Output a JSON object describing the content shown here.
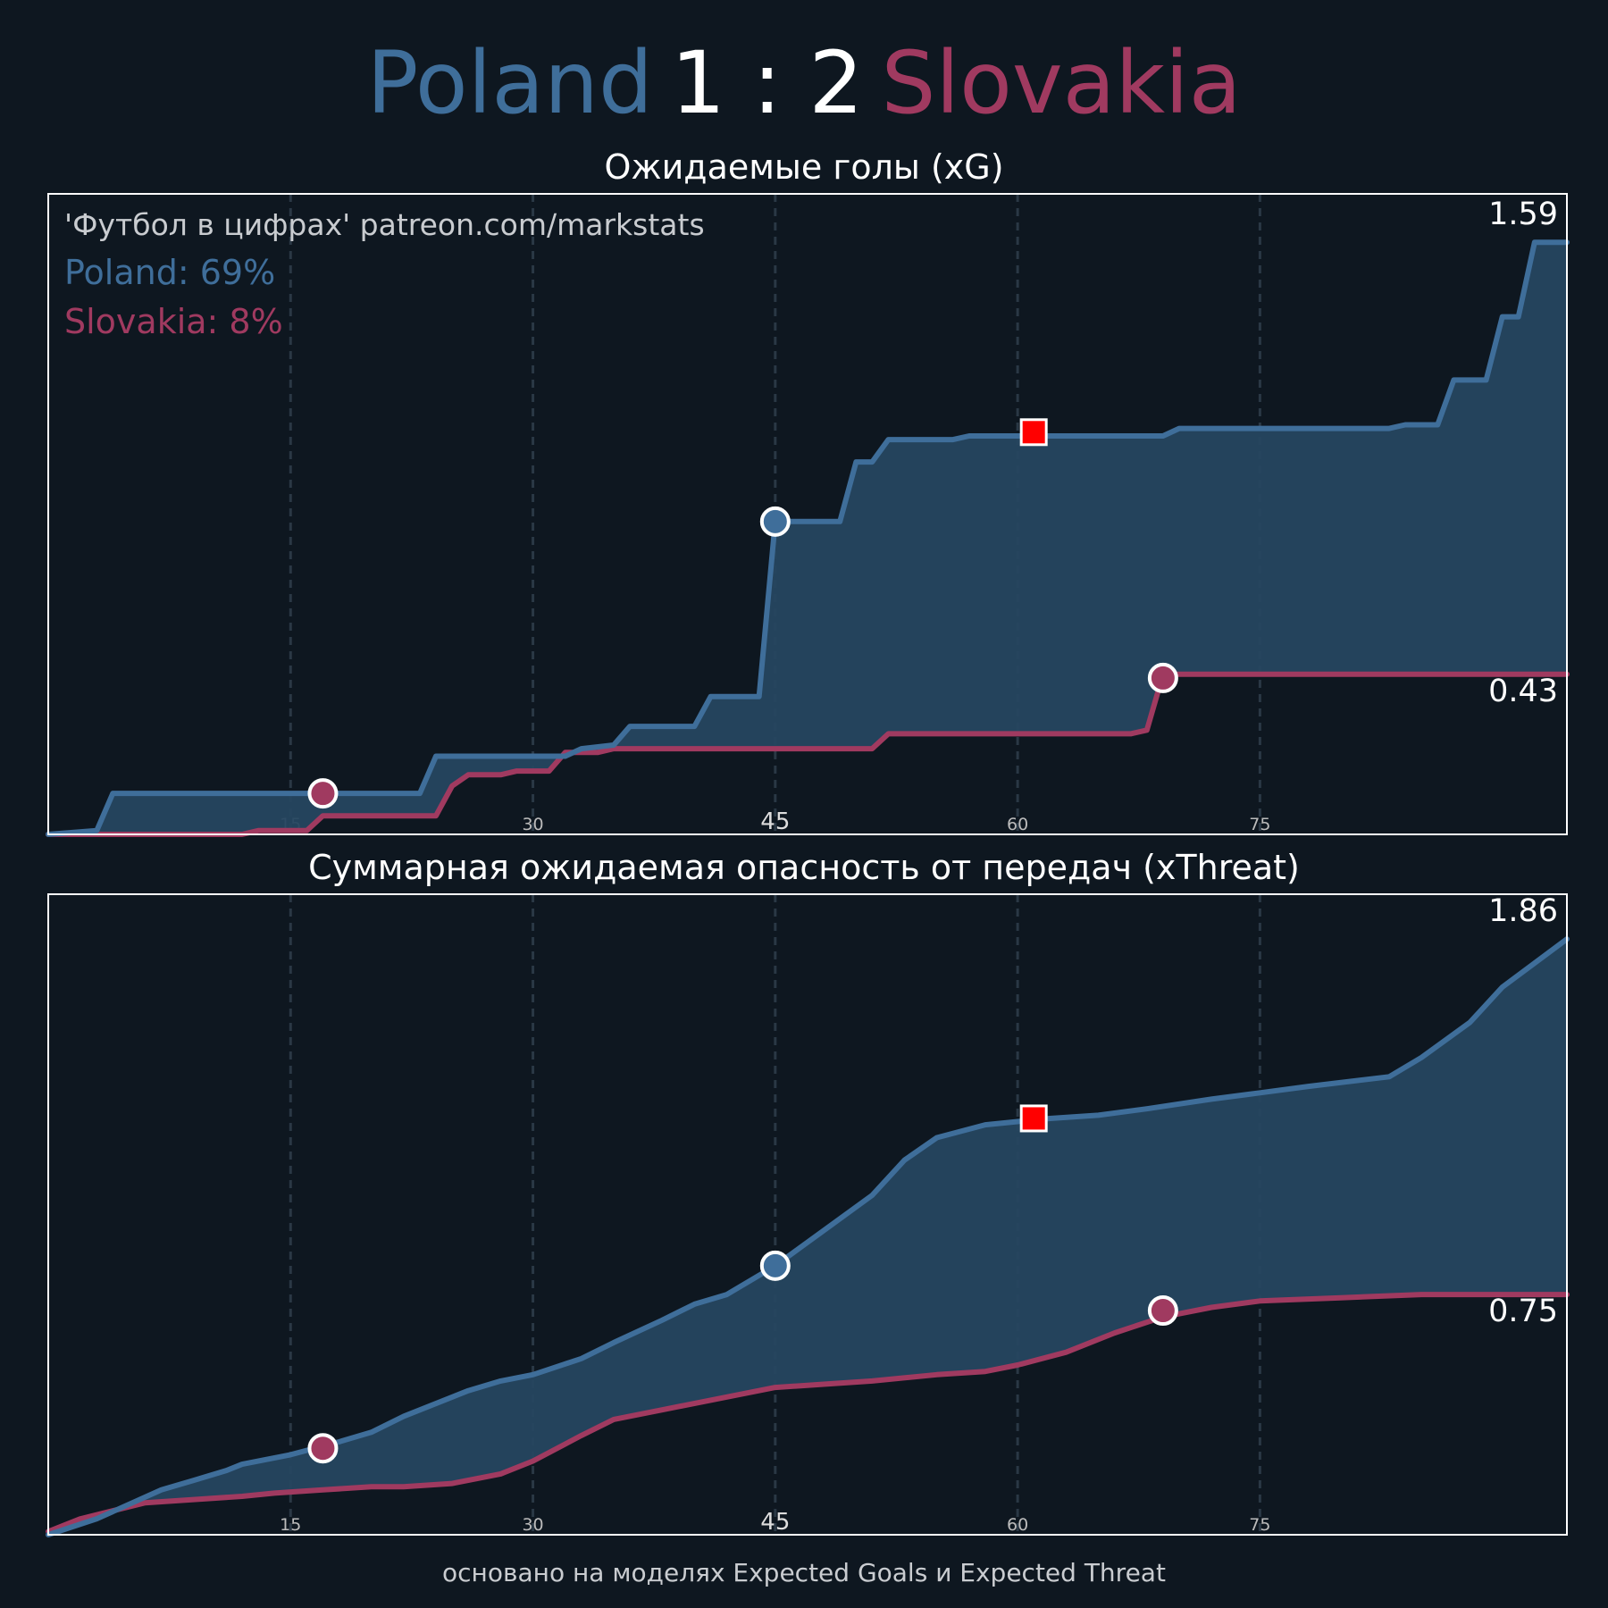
{
  "header": {
    "home_team": "Poland",
    "score": "1 : 2",
    "away_team": "Slovakia"
  },
  "colors": {
    "home": "#3f6e9a",
    "away": "#a03a60",
    "background": "#0e1720",
    "fill": "#264660",
    "red_card": "#ff0000"
  },
  "watermark": "'Футбол в цифрах' patreon.com/markstats",
  "footer": "основано на моделях Expected Goals и Expected Threat",
  "chart_data": [
    {
      "type": "area",
      "title": "Ожидаемые голы (xG)",
      "xlim": [
        0,
        94
      ],
      "ylim": [
        0,
        1.72
      ],
      "xticks": [
        15,
        30,
        45,
        60,
        75
      ],
      "grid": "vertical dashed",
      "legend": [
        {
          "label": "Poland: 69%",
          "team": "home"
        },
        {
          "label": "Slovakia: 8%",
          "team": "away"
        }
      ],
      "final_labels": {
        "home": "1.59",
        "away": "0.43"
      },
      "series": [
        {
          "name": "Poland",
          "team": "home",
          "step": true,
          "points": [
            [
              0,
              0
            ],
            [
              3,
              0.01
            ],
            [
              4,
              0.11
            ],
            [
              23,
              0.11
            ],
            [
              24,
              0.21
            ],
            [
              32,
              0.21
            ],
            [
              33,
              0.23
            ],
            [
              35,
              0.24
            ],
            [
              36,
              0.29
            ],
            [
              40,
              0.29
            ],
            [
              41,
              0.37
            ],
            [
              44,
              0.37
            ],
            [
              45,
              0.84
            ],
            [
              49,
              0.84
            ],
            [
              50,
              1.0
            ],
            [
              51,
              1.0
            ],
            [
              52,
              1.06
            ],
            [
              56,
              1.06
            ],
            [
              57,
              1.07
            ],
            [
              69,
              1.07
            ],
            [
              70,
              1.09
            ],
            [
              83,
              1.09
            ],
            [
              84,
              1.1
            ],
            [
              86,
              1.1
            ],
            [
              87,
              1.22
            ],
            [
              89,
              1.22
            ],
            [
              90,
              1.39
            ],
            [
              91,
              1.39
            ],
            [
              92,
              1.59
            ],
            [
              94,
              1.59
            ]
          ]
        },
        {
          "name": "Slovakia",
          "team": "away",
          "step": true,
          "points": [
            [
              0,
              0
            ],
            [
              12,
              0
            ],
            [
              13,
              0.01
            ],
            [
              16,
              0.01
            ],
            [
              17,
              0.05
            ],
            [
              24,
              0.05
            ],
            [
              25,
              0.13
            ],
            [
              26,
              0.16
            ],
            [
              28,
              0.16
            ],
            [
              29,
              0.17
            ],
            [
              31,
              0.17
            ],
            [
              32,
              0.22
            ],
            [
              34,
              0.22
            ],
            [
              35,
              0.23
            ],
            [
              51,
              0.23
            ],
            [
              52,
              0.27
            ],
            [
              67,
              0.27
            ],
            [
              68,
              0.28
            ],
            [
              69,
              0.43
            ],
            [
              94,
              0.43
            ]
          ]
        }
      ],
      "events": [
        {
          "minute": 17,
          "value": 0.11,
          "team": "away",
          "kind": "goal"
        },
        {
          "minute": 45,
          "value": 0.84,
          "team": "home",
          "kind": "goal"
        },
        {
          "minute": 61,
          "value": 1.08,
          "team": "home",
          "kind": "red-card"
        },
        {
          "minute": 69,
          "value": 0.42,
          "team": "away",
          "kind": "goal"
        }
      ]
    },
    {
      "type": "area",
      "title": "Суммарная ожидаемая опасность от передач (xThreat)",
      "xlim": [
        0,
        94
      ],
      "ylim": [
        0,
        2.0
      ],
      "xticks": [
        15,
        30,
        45,
        60,
        75
      ],
      "grid": "vertical dashed",
      "final_labels": {
        "home": "1.86",
        "away": "0.75"
      },
      "series": [
        {
          "name": "Poland",
          "team": "home",
          "step": false,
          "points": [
            [
              0,
              0
            ],
            [
              3,
              0.05
            ],
            [
              7,
              0.14
            ],
            [
              9,
              0.17
            ],
            [
              11,
              0.2
            ],
            [
              12,
              0.22
            ],
            [
              15,
              0.25
            ],
            [
              18,
              0.29
            ],
            [
              20,
              0.32
            ],
            [
              22,
              0.37
            ],
            [
              26,
              0.45
            ],
            [
              28,
              0.48
            ],
            [
              30,
              0.5
            ],
            [
              33,
              0.55
            ],
            [
              35,
              0.6
            ],
            [
              38,
              0.67
            ],
            [
              40,
              0.72
            ],
            [
              42,
              0.75
            ],
            [
              45,
              0.84
            ],
            [
              48,
              0.95
            ],
            [
              51,
              1.06
            ],
            [
              53,
              1.17
            ],
            [
              55,
              1.24
            ],
            [
              58,
              1.28
            ],
            [
              60,
              1.29
            ],
            [
              62,
              1.3
            ],
            [
              65,
              1.31
            ],
            [
              68,
              1.33
            ],
            [
              72,
              1.36
            ],
            [
              75,
              1.38
            ],
            [
              78,
              1.4
            ],
            [
              83,
              1.43
            ],
            [
              85,
              1.49
            ],
            [
              88,
              1.6
            ],
            [
              90,
              1.71
            ],
            [
              94,
              1.86
            ]
          ]
        },
        {
          "name": "Slovakia",
          "team": "away",
          "step": false,
          "points": [
            [
              0,
              0.01
            ],
            [
              2,
              0.05
            ],
            [
              6,
              0.1
            ],
            [
              9,
              0.11
            ],
            [
              12,
              0.12
            ],
            [
              14,
              0.13
            ],
            [
              17,
              0.14
            ],
            [
              20,
              0.15
            ],
            [
              22,
              0.15
            ],
            [
              25,
              0.16
            ],
            [
              28,
              0.19
            ],
            [
              30,
              0.23
            ],
            [
              33,
              0.31
            ],
            [
              35,
              0.36
            ],
            [
              38,
              0.39
            ],
            [
              42,
              0.43
            ],
            [
              45,
              0.46
            ],
            [
              48,
              0.47
            ],
            [
              51,
              0.48
            ],
            [
              55,
              0.5
            ],
            [
              58,
              0.51
            ],
            [
              60,
              0.53
            ],
            [
              63,
              0.57
            ],
            [
              66,
              0.63
            ],
            [
              69,
              0.68
            ],
            [
              72,
              0.71
            ],
            [
              75,
              0.73
            ],
            [
              80,
              0.74
            ],
            [
              85,
              0.75
            ],
            [
              94,
              0.75
            ]
          ]
        }
      ],
      "events": [
        {
          "minute": 17,
          "value": 0.27,
          "team": "away",
          "kind": "goal"
        },
        {
          "minute": 45,
          "value": 0.84,
          "team": "home",
          "kind": "goal"
        },
        {
          "minute": 61,
          "value": 1.3,
          "team": "home",
          "kind": "red-card"
        },
        {
          "minute": 69,
          "value": 0.7,
          "team": "away",
          "kind": "goal"
        }
      ]
    }
  ]
}
